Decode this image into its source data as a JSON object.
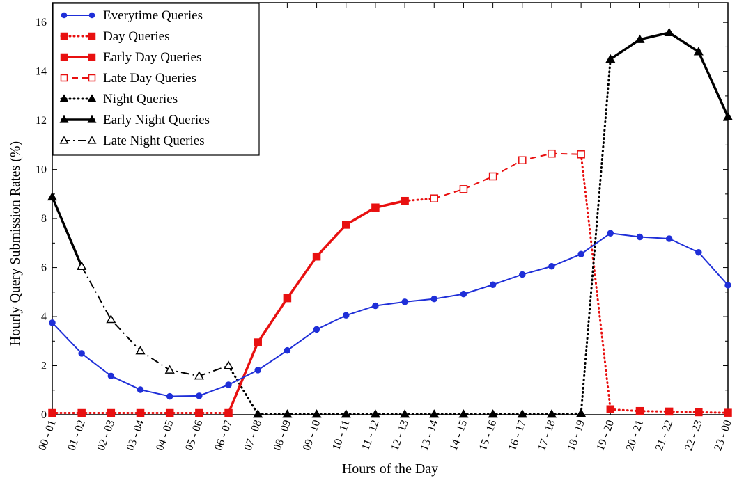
{
  "chart_data": {
    "type": "line",
    "xlabel": "Hours of the Day",
    "ylabel": "Hourly Query Submission Rates (%)",
    "ylim": [
      0,
      16.8
    ],
    "yticks": [
      0,
      2,
      4,
      6,
      8,
      10,
      12,
      14,
      16
    ],
    "categories": [
      "00 - 01",
      "01 - 02",
      "02 - 03",
      "03 - 04",
      "04 - 05",
      "05 - 06",
      "06 - 07",
      "07 - 08",
      "08 - 09",
      "09 - 10",
      "10 - 11",
      "11 - 12",
      "12 - 13",
      "13 - 14",
      "14 - 15",
      "15 - 16",
      "16 - 17",
      "17 - 18",
      "18 - 19",
      "19 - 20",
      "20 - 21",
      "21 - 22",
      "22 - 23",
      "23 - 00"
    ],
    "grid": false,
    "legend_position": "top-left",
    "series": [
      {
        "name": "Everytime Queries",
        "color": "#1f2fd8",
        "line": "solid",
        "marker": "circle",
        "fill": true,
        "values": [
          3.75,
          2.5,
          1.58,
          1.02,
          0.75,
          0.77,
          1.22,
          1.82,
          2.62,
          3.48,
          4.05,
          4.44,
          4.6,
          4.72,
          4.92,
          5.3,
          5.72,
          6.05,
          6.55,
          7.4,
          7.25,
          7.18,
          6.62,
          5.28
        ]
      },
      {
        "name": "Day Queries",
        "color": "#e81010",
        "line": "dotted",
        "marker": "square",
        "fill": true,
        "values": [
          0.07,
          0.07,
          0.07,
          0.07,
          0.07,
          0.07,
          0.07,
          null,
          null,
          null,
          null,
          null,
          null,
          null,
          null,
          null,
          null,
          null,
          null,
          0.22,
          0.15,
          0.13,
          0.1,
          0.08
        ]
      },
      {
        "name": "Early Day Queries",
        "color": "#e81010",
        "line": "solid-thick",
        "marker": "square",
        "fill": true,
        "values": [
          null,
          null,
          null,
          null,
          null,
          null,
          null,
          2.95,
          4.75,
          6.45,
          7.75,
          8.45,
          8.72,
          null,
          null,
          null,
          null,
          null,
          null,
          null,
          null,
          null,
          null,
          null
        ]
      },
      {
        "name": "Late Day Queries",
        "color": "#e81010",
        "line": "dashed",
        "marker": "square",
        "fill": false,
        "values": [
          null,
          null,
          null,
          null,
          null,
          null,
          null,
          null,
          null,
          null,
          null,
          null,
          null,
          8.82,
          9.2,
          9.72,
          10.38,
          10.65,
          10.62,
          null,
          null,
          null,
          null,
          null
        ]
      },
      {
        "name": "Night Queries",
        "color": "#000000",
        "line": "dotted",
        "marker": "triangle",
        "fill": true,
        "values": [
          null,
          null,
          null,
          null,
          null,
          null,
          null,
          0.02,
          0.02,
          0.02,
          0.02,
          0.02,
          0.02,
          0.02,
          0.02,
          0.02,
          0.02,
          0.02,
          0.05,
          null,
          null,
          null,
          null,
          null
        ]
      },
      {
        "name": "Early Night Queries",
        "color": "#000000",
        "line": "solid-thick",
        "marker": "triangle",
        "fill": true,
        "values": [
          8.88,
          6.05,
          null,
          null,
          null,
          null,
          null,
          null,
          null,
          null,
          null,
          null,
          null,
          null,
          null,
          null,
          null,
          null,
          null,
          14.5,
          15.3,
          15.58,
          14.8,
          12.15
        ]
      },
      {
        "name": "Late Night Queries",
        "color": "#000000",
        "line": "dashdot",
        "marker": "triangle",
        "fill": false,
        "values": [
          null,
          6.05,
          3.88,
          2.6,
          1.82,
          1.58,
          2.0,
          null,
          null,
          null,
          null,
          null,
          null,
          null,
          null,
          null,
          null,
          null,
          null,
          null,
          null,
          null,
          null,
          null
        ]
      }
    ],
    "connectors": [
      {
        "color": "#e81010",
        "style": "dotted",
        "from": [
          12,
          8.72
        ],
        "to": [
          13,
          8.82
        ]
      },
      {
        "color": "#e81010",
        "style": "dotted",
        "from": [
          18,
          10.62
        ],
        "to": [
          19,
          0.22
        ]
      },
      {
        "color": "#000000",
        "style": "dotted",
        "from": [
          6,
          2.0
        ],
        "to": [
          7,
          0.02
        ]
      },
      {
        "color": "#000000",
        "style": "dotted",
        "from": [
          18,
          0.05
        ],
        "to": [
          19,
          14.5
        ]
      },
      {
        "color": "#e81010",
        "style": "solid-thick",
        "from": [
          6,
          0.07
        ],
        "to": [
          7,
          2.95
        ]
      }
    ]
  }
}
